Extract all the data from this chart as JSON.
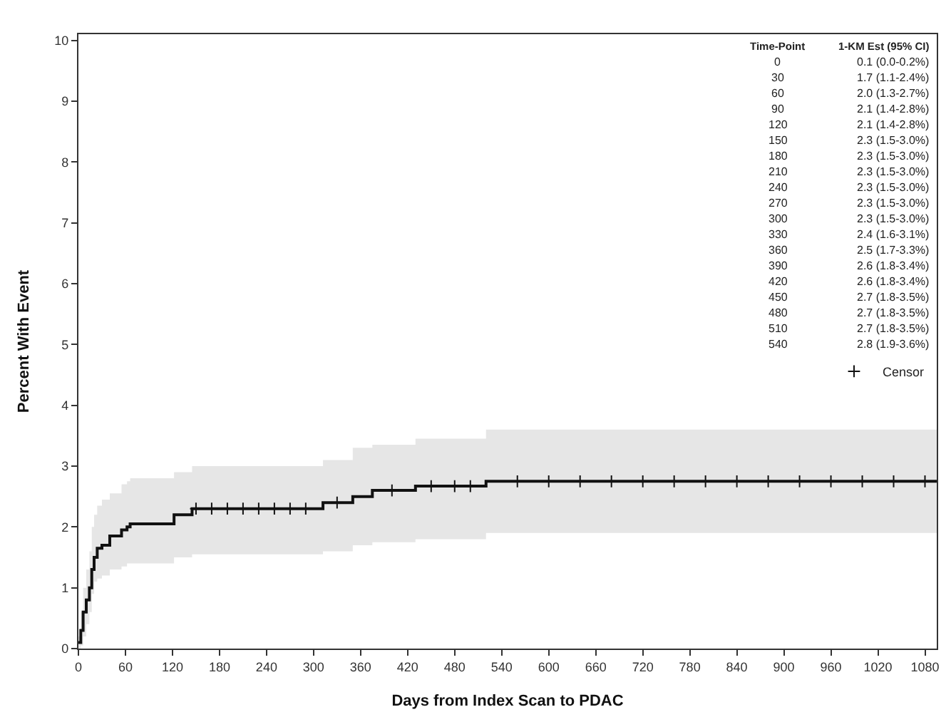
{
  "chart_data": {
    "type": "step",
    "xlabel": "Days from Index Scan to PDAC",
    "ylabel": "Percent With Event",
    "xlim": [
      0,
      1095
    ],
    "ylim": [
      0,
      10.1
    ],
    "xticks": [
      0,
      60,
      120,
      180,
      240,
      300,
      360,
      420,
      480,
      540,
      600,
      660,
      720,
      780,
      840,
      900,
      960,
      1020,
      1080
    ],
    "yticks": [
      0,
      1,
      2,
      3,
      4,
      5,
      6,
      7,
      8,
      9,
      10
    ],
    "legend": "right",
    "line_style": "solid",
    "series": [
      {
        "color": "#111111",
        "marker": "none",
        "x": [
          0,
          3,
          6,
          10,
          14,
          17,
          20,
          24,
          30,
          40,
          55,
          62,
          66,
          122,
          145,
          312,
          350,
          375,
          430,
          520,
          1095
        ],
        "values": [
          0.1,
          0.3,
          0.6,
          0.8,
          1.0,
          1.3,
          1.5,
          1.65,
          1.7,
          1.85,
          1.95,
          2.0,
          2.05,
          2.2,
          2.3,
          2.4,
          2.5,
          2.6,
          2.67,
          2.75,
          2.75
        ],
        "lower": [
          0.0,
          0.05,
          0.2,
          0.4,
          0.6,
          0.9,
          1.1,
          1.15,
          1.2,
          1.3,
          1.35,
          1.4,
          1.4,
          1.5,
          1.55,
          1.6,
          1.7,
          1.75,
          1.8,
          1.9,
          1.9
        ],
        "upper": [
          0.2,
          0.6,
          1.0,
          1.3,
          1.6,
          2.0,
          2.2,
          2.35,
          2.45,
          2.55,
          2.7,
          2.75,
          2.8,
          2.9,
          3.0,
          3.1,
          3.3,
          3.35,
          3.45,
          3.6,
          3.6
        ]
      },
      {
        "type": "scatter",
        "name": "Censor",
        "color": "#111111",
        "marker": "cross",
        "x": [
          150,
          170,
          190,
          210,
          230,
          250,
          270,
          290,
          330,
          400,
          450,
          480,
          500,
          560,
          600,
          640,
          680,
          720,
          760,
          800,
          840,
          880,
          920,
          960,
          1000,
          1040,
          1080
        ],
        "values": [
          2.3,
          2.3,
          2.3,
          2.3,
          2.3,
          2.3,
          2.3,
          2.3,
          2.4,
          2.6,
          2.67,
          2.67,
          2.67,
          2.75,
          2.75,
          2.75,
          2.75,
          2.75,
          2.75,
          2.75,
          2.75,
          2.75,
          2.75,
          2.75,
          2.75,
          2.75,
          2.75
        ]
      }
    ],
    "annotations": [
      "Time-Point",
      "1-KM Est (95% CI)",
      "0",
      "0.1 (0.0-0.2%)",
      "30",
      "1.7 (1.1-2.4%)",
      "60",
      "2.0 (1.3-2.7%)",
      "90",
      "2.1 (1.4-2.8%)",
      "120",
      "2.1 (1.4-2.8%)",
      "150",
      "2.3 (1.5-3.0%)",
      "180",
      "2.3 (1.5-3.0%)",
      "210",
      "2.3 (1.5-3.0%)",
      "240",
      "2.3 (1.5-3.0%)",
      "270",
      "2.3 (1.5-3.0%)",
      "300",
      "2.3 (1.5-3.0%)",
      "330",
      "2.4 (1.6-3.1%)",
      "360",
      "2.5 (1.7-3.3%)",
      "390",
      "2.6 (1.8-3.4%)",
      "420",
      "2.6 (1.8-3.4%)",
      "450",
      "2.7 (1.8-3.5%)",
      "480",
      "2.7 (1.8-3.5%)",
      "510",
      "2.7 (1.8-3.5%)",
      "540",
      "2.8 (1.9-3.6%)"
    ]
  }
}
